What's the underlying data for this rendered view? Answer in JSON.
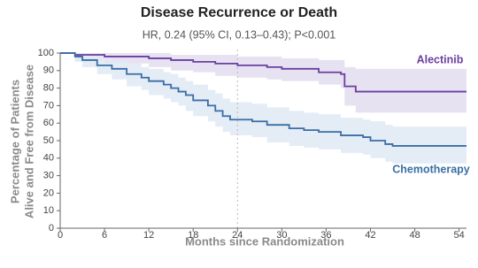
{
  "chart_data": {
    "type": "line",
    "step": true,
    "title": "Disease Recurrence or Death",
    "subtitle": "HR, 0.24 (95% CI, 0.13–0.43); P<0.001",
    "xlabel": "Months since Randomization",
    "ylabel": [
      "Percentage of Patients",
      "Alive and Free from Disease"
    ],
    "xlim": [
      0,
      55
    ],
    "ylim": [
      0,
      100
    ],
    "xticks": [
      0,
      6,
      12,
      18,
      24,
      30,
      36,
      42,
      48,
      54
    ],
    "yticks": [
      0,
      10,
      20,
      30,
      40,
      50,
      60,
      70,
      80,
      90,
      100
    ],
    "reference_x": 24,
    "series": [
      {
        "name": "Alectinib",
        "color": "#6a3fa0",
        "band_color": "#e3ddef",
        "x": [
          0,
          2,
          6,
          12,
          15,
          18,
          21,
          24,
          28,
          30,
          35,
          38,
          38.5,
          40,
          55
        ],
        "values": [
          100,
          99,
          98,
          97,
          96,
          95,
          94,
          93,
          92,
          91,
          89,
          88,
          81,
          78,
          78
        ],
        "ci_lower": [
          100,
          96,
          94,
          92,
          90,
          89,
          87,
          86,
          85,
          84,
          82,
          80,
          70,
          66,
          66
        ],
        "ci_upper": [
          100,
          100,
          100,
          100,
          99,
          99,
          99,
          98,
          98,
          97,
          96,
          96,
          92,
          91,
          91
        ]
      },
      {
        "name": "Chemotherapy",
        "color": "#3a6ea5",
        "band_color": "#dfe9f5",
        "x": [
          0,
          2,
          3,
          5,
          7,
          9,
          11,
          12,
          14,
          15,
          16,
          17,
          18,
          20,
          21,
          22,
          23,
          26,
          28,
          31,
          33,
          35,
          38,
          41,
          42,
          44,
          45,
          55
        ],
        "values": [
          100,
          98,
          96,
          93,
          91,
          88,
          86,
          84,
          82,
          80,
          78,
          76,
          73,
          70,
          67,
          64,
          62,
          61,
          59,
          57,
          56,
          55,
          53,
          52,
          50,
          48,
          47,
          47
        ],
        "ci_lower": [
          100,
          95,
          92,
          88,
          85,
          81,
          79,
          76,
          74,
          72,
          70,
          67,
          64,
          61,
          58,
          55,
          53,
          52,
          49,
          47,
          46,
          45,
          43,
          42,
          40,
          38,
          37,
          36
        ],
        "ci_upper": [
          100,
          100,
          99,
          98,
          96,
          94,
          92,
          91,
          89,
          88,
          86,
          84,
          82,
          79,
          77,
          74,
          72,
          71,
          69,
          67,
          66,
          65,
          63,
          62,
          61,
          59,
          58,
          58
        ]
      }
    ]
  }
}
